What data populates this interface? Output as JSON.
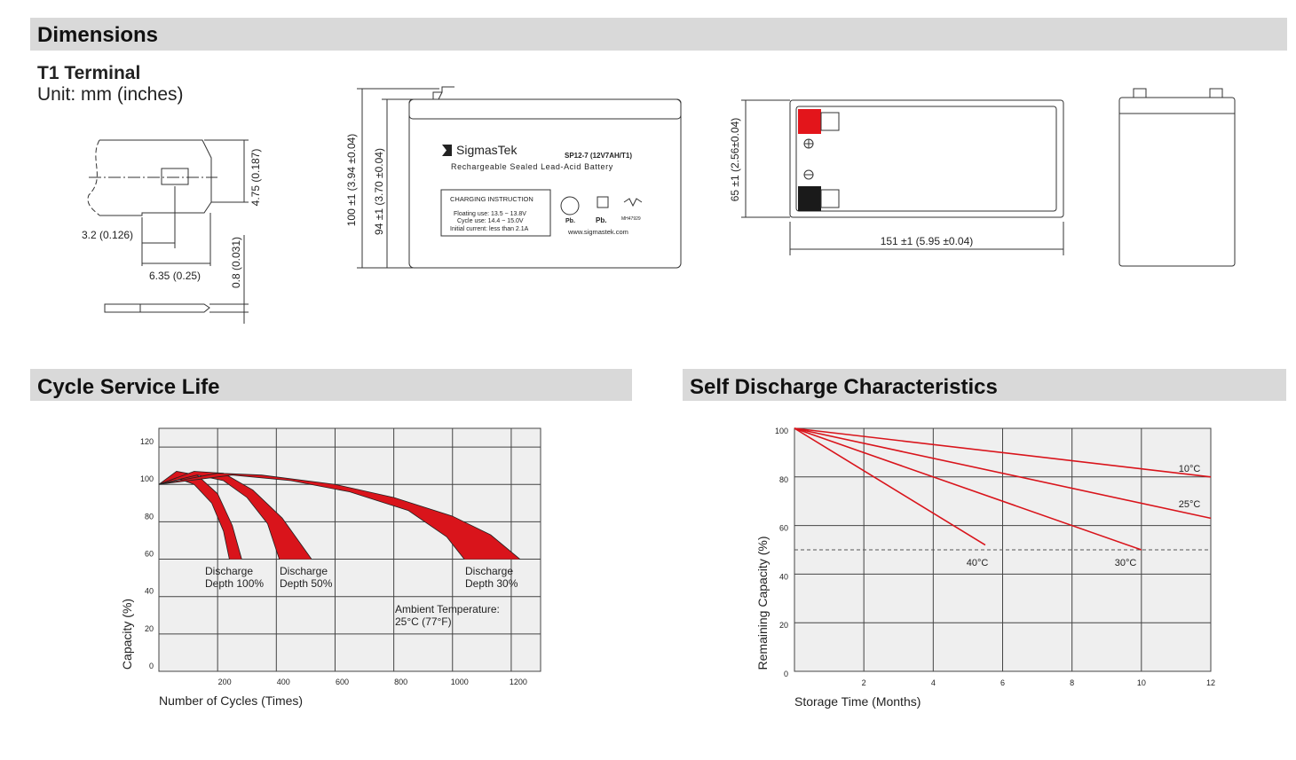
{
  "dimensions": {
    "title": "Dimensions",
    "terminal": {
      "title": "T1 Terminal",
      "unit": "Unit: mm (inches)",
      "dims": [
        "3.2 (0.126)",
        "6.35 (0.25)",
        "4.75 (0.187)",
        "0.8 (0.031)"
      ]
    },
    "front_view": {
      "height_overall": "100 ±1 (3.94 ±0.04)",
      "height_case": "94 ±1 (3.70 ±0.04)",
      "brand": "SigmasTek",
      "model": "SP12-7 (12V7AH/T1)",
      "description": "Rechargeable Sealed Lead-Acid Battery",
      "charging": {
        "title": "CHARGING INSTRUCTION",
        "lines": [
          "Floating use: 13.5 ~ 13.8V",
          "Cycle use: 14.4 ~ 15.0V",
          "Initial current: less than 2.1A"
        ]
      },
      "icons": [
        "Pb.",
        "Pb.",
        "MH47929"
      ],
      "website": "www.sigmastek.com"
    },
    "top_view": {
      "width": "65 ±1 (2.56±0.04)",
      "length": "151 ±1 (5.95 ±0.04)"
    }
  },
  "chart_data": [
    {
      "type": "band",
      "title": "Cycle Service Life",
      "x_label": "Number of Cycles (Times)",
      "y_label": "Capacity (%)",
      "xlim": [
        0,
        1300
      ],
      "ylim": [
        0,
        130
      ],
      "xticks": [
        200,
        400,
        600,
        800,
        1000,
        1200
      ],
      "yticks": [
        0,
        20,
        40,
        60,
        80,
        100,
        120
      ],
      "grid": true,
      "color": "#d9141b",
      "series": [
        {
          "label": [
            "Discharge",
            "Depth 100%"
          ],
          "x_upper": [
            0,
            60,
            130,
            200,
            250,
            282
          ],
          "upper": [
            100,
            107,
            105,
            95,
            78,
            60
          ],
          "x_lower": [
            0,
            60,
            120,
            180,
            220,
            240
          ],
          "lower": [
            100,
            103.5,
            100,
            90,
            75,
            60
          ]
        },
        {
          "label": [
            "Discharge",
            "Depth 50%"
          ],
          "x_upper": [
            0,
            120,
            220,
            320,
            420,
            520
          ],
          "upper": [
            100,
            107,
            106,
            97,
            82,
            60
          ],
          "x_lower": [
            0,
            130,
            220,
            300,
            370,
            410
          ],
          "lower": [
            100,
            105,
            102,
            93,
            79,
            60
          ]
        },
        {
          "label": [
            "Discharge",
            "Depth 30%"
          ],
          "x_upper": [
            0,
            200,
            350,
            600,
            800,
            1000,
            1130,
            1230
          ],
          "upper": [
            100,
            106,
            105,
            100,
            93,
            83,
            73,
            60
          ],
          "x_lower": [
            0,
            250,
            450,
            650,
            850,
            980,
            1040
          ],
          "lower": [
            100,
            105,
            102,
            96,
            86,
            72,
            60
          ]
        }
      ],
      "annotation": [
        "Ambient Temperature:",
        "25°C (77°F)"
      ]
    },
    {
      "type": "line",
      "title": "Self Discharge Characteristics",
      "x_label": "Storage Time (Months)",
      "y_label": "Remaining Capacity (%)",
      "xlim": [
        0,
        12
      ],
      "ylim": [
        0,
        100
      ],
      "xticks": [
        2,
        4,
        6,
        8,
        10,
        12
      ],
      "yticks": [
        0,
        20,
        40,
        60,
        80,
        100
      ],
      "grid": true,
      "dashed_line": 50,
      "series": [
        {
          "name": "10°C",
          "color": "#d9141b",
          "x": [
            0,
            12
          ],
          "values": [
            100,
            80
          ]
        },
        {
          "name": "25°C",
          "color": "#d9141b",
          "x": [
            0,
            12
          ],
          "values": [
            100,
            63
          ]
        },
        {
          "name": "40°C",
          "color": "#d9141b",
          "x": [
            0,
            5.5
          ],
          "values": [
            100,
            52
          ]
        },
        {
          "name": "30°C",
          "color": "#d9141b",
          "x": [
            0,
            10
          ],
          "values": [
            100,
            50
          ]
        }
      ]
    }
  ]
}
